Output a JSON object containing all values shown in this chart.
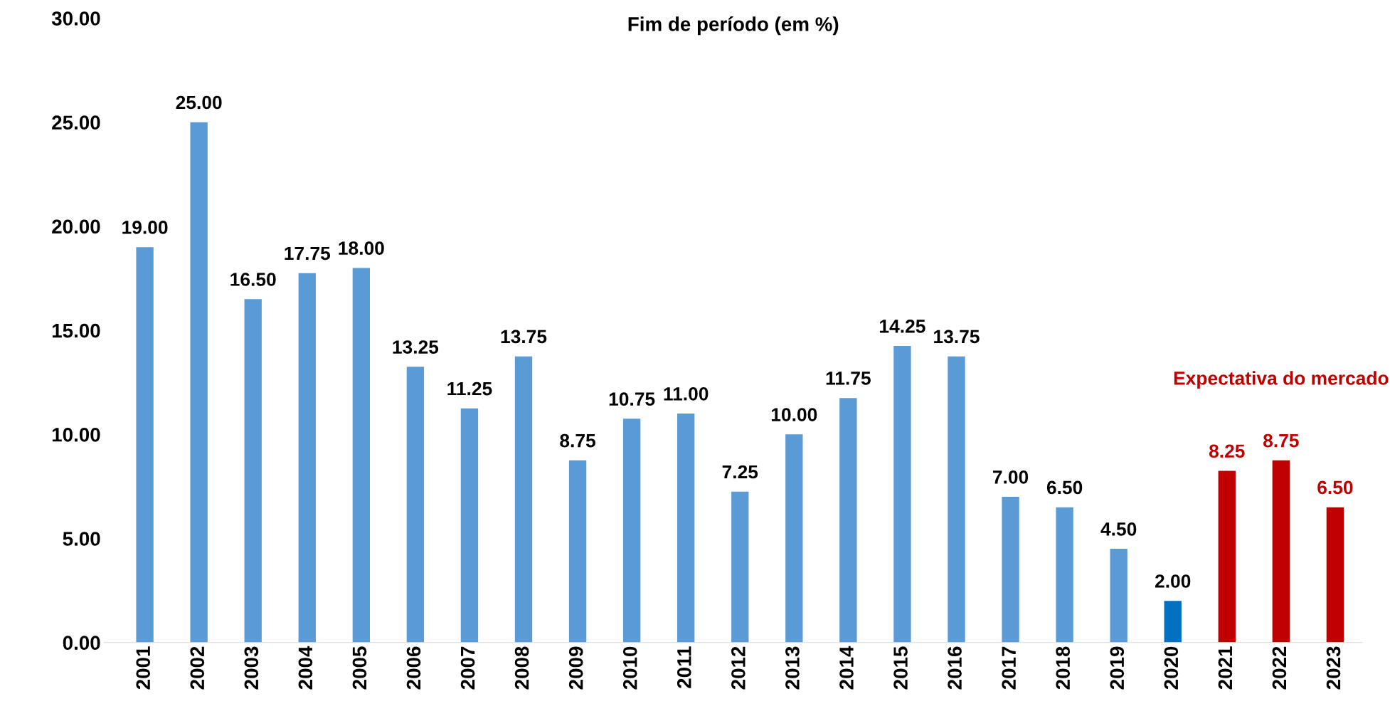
{
  "chart_data": {
    "type": "bar",
    "title": "Fim de período (em %)",
    "categories": [
      "2001",
      "2002",
      "2003",
      "2004",
      "2005",
      "2006",
      "2007",
      "2008",
      "2009",
      "2010",
      "2011",
      "2012",
      "2013",
      "2014",
      "2015",
      "2016",
      "2017",
      "2018",
      "2019",
      "2020",
      "2021",
      "2022",
      "2023"
    ],
    "series": [
      {
        "colors": [
          "#5b9bd5",
          "#5b9bd5",
          "#5b9bd5",
          "#5b9bd5",
          "#5b9bd5",
          "#5b9bd5",
          "#5b9bd5",
          "#5b9bd5",
          "#5b9bd5",
          "#5b9bd5",
          "#5b9bd5",
          "#5b9bd5",
          "#5b9bd5",
          "#5b9bd5",
          "#5b9bd5",
          "#5b9bd5",
          "#5b9bd5",
          "#5b9bd5",
          "#5b9bd5",
          "#0070c0",
          null,
          null,
          null
        ],
        "values": [
          19.0,
          25.0,
          16.5,
          17.75,
          18.0,
          13.25,
          11.25,
          13.75,
          8.75,
          10.75,
          11.0,
          7.25,
          10.0,
          11.75,
          14.25,
          13.75,
          7.0,
          6.5,
          4.5,
          2.0,
          null,
          null,
          null
        ]
      },
      {
        "color": "#c00000",
        "values": [
          null,
          null,
          null,
          null,
          null,
          null,
          null,
          null,
          null,
          null,
          null,
          null,
          null,
          null,
          null,
          null,
          null,
          null,
          null,
          null,
          8.25,
          8.75,
          6.5
        ]
      }
    ],
    "value_labels": [
      "19.00",
      "25.00",
      "16.50",
      "17.75",
      "18.00",
      "13.25",
      "11.25",
      "13.75",
      "8.75",
      "10.75",
      "11.00",
      "7.25",
      "10.00",
      "11.75",
      "14.25",
      "13.75",
      "7.00",
      "6.50",
      "4.50",
      "2.00",
      "8.25",
      "8.75",
      "6.50"
    ],
    "annotations": [
      "Expectativa do mercado"
    ],
    "ylim": [
      0,
      30
    ],
    "yticks": [
      {
        "value": 0,
        "label": "0.00"
      },
      {
        "value": 5,
        "label": "5.00"
      },
      {
        "value": 10,
        "label": "10.00"
      },
      {
        "value": 15,
        "label": "15.00"
      },
      {
        "value": 20,
        "label": "20.00"
      },
      {
        "value": 25,
        "label": "25.00"
      },
      {
        "value": 30,
        "label": "30.00"
      }
    ],
    "grid": false,
    "legend": false
  }
}
